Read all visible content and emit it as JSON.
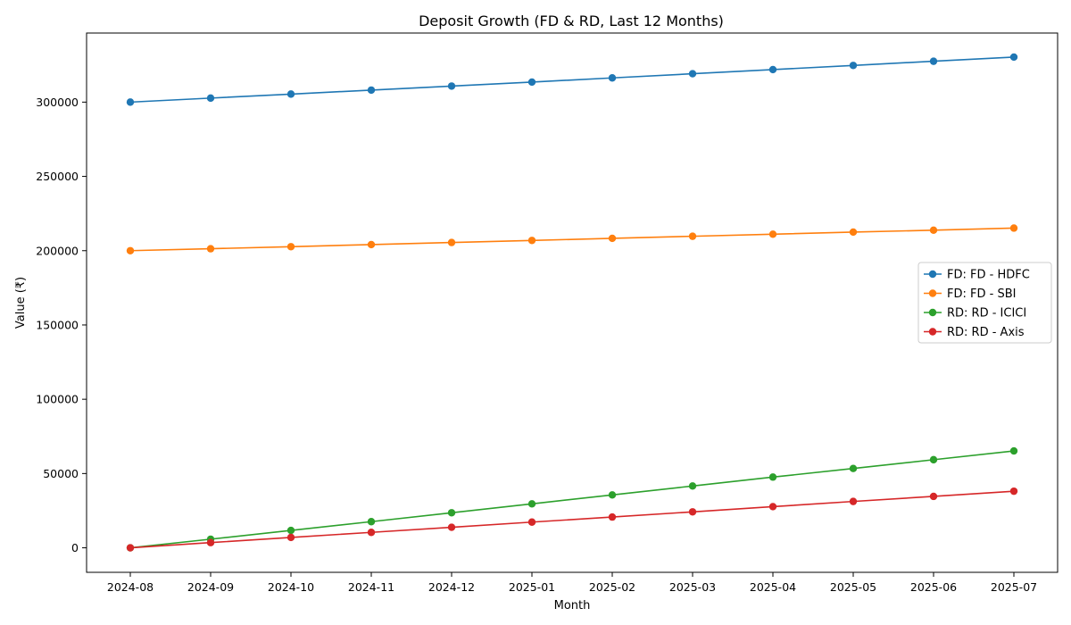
{
  "chart_data": {
    "type": "line",
    "title": "Deposit Growth (FD & RD, Last 12 Months)",
    "xlabel": "Month",
    "ylabel": "Value (₹)",
    "categories": [
      "2024-08",
      "2024-09",
      "2024-10",
      "2024-11",
      "2024-12",
      "2025-01",
      "2025-02",
      "2025-03",
      "2025-04",
      "2025-05",
      "2025-06",
      "2025-07"
    ],
    "ylim": [
      -16500,
      346500
    ],
    "yticks": [
      0,
      50000,
      100000,
      150000,
      200000,
      250000,
      300000
    ],
    "grid": false,
    "legend_position": "center-right",
    "series": [
      {
        "name": "FD: FD - HDFC",
        "color": "#1f77b4",
        "values": [
          300000,
          302700,
          305400,
          308100,
          310800,
          313500,
          316300,
          319100,
          321900,
          324700,
          327500,
          330300
        ]
      },
      {
        "name": "FD: FD - SBI",
        "color": "#ff7f0e",
        "values": [
          200000,
          201300,
          202700,
          204100,
          205500,
          206900,
          208300,
          209700,
          211100,
          212500,
          213800,
          215200
        ]
      },
      {
        "name": "RD: RD - ICICI",
        "color": "#2ca02c",
        "values": [
          0,
          5800,
          11700,
          17600,
          23600,
          29600,
          35600,
          41600,
          47600,
          53400,
          59300,
          65200
        ]
      },
      {
        "name": "RD: RD - Axis",
        "color": "#d62728",
        "values": [
          0,
          3500,
          7000,
          10400,
          13800,
          17300,
          20700,
          24200,
          27700,
          31200,
          34600,
          38100
        ]
      }
    ]
  }
}
